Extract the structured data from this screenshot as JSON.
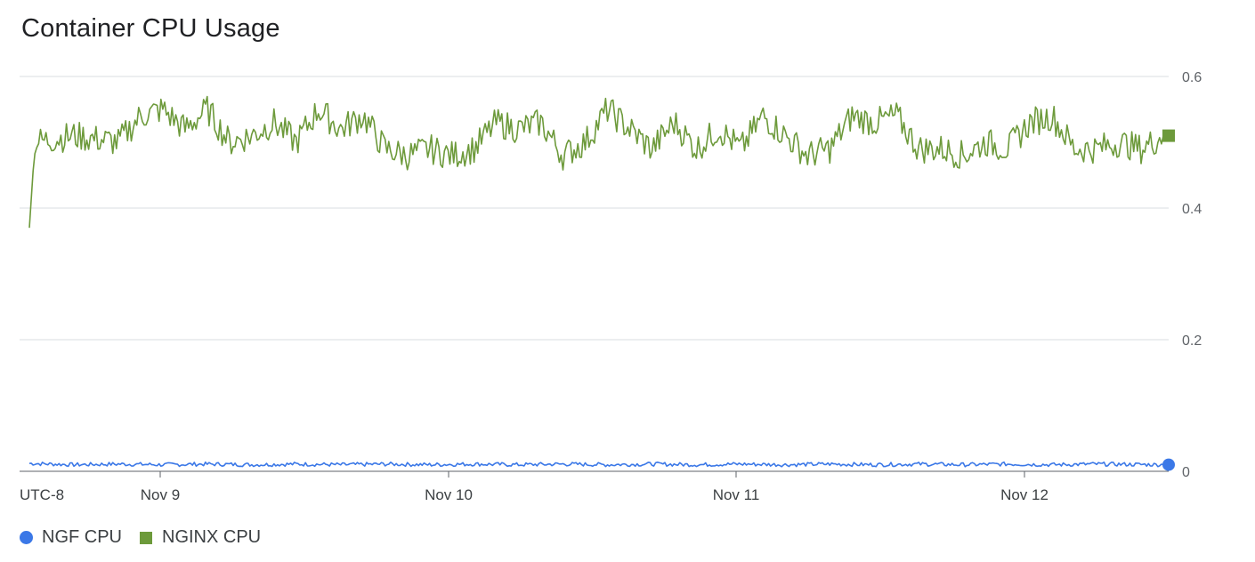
{
  "chart_data": {
    "type": "line",
    "title": "Container CPU Usage",
    "timezone_label": "UTC-8",
    "x_tick_labels": [
      "Nov 9",
      "Nov 10",
      "Nov 11",
      "Nov 12"
    ],
    "x_range": [
      "Nov 8 14:00",
      "Nov 12 20:00"
    ],
    "y_ticks": [
      "0",
      "0.2",
      "0.4",
      "0.6"
    ],
    "ylim": [
      0,
      0.6
    ],
    "grid": true,
    "legend_position": "bottom-left",
    "series": [
      {
        "name": "NGF CPU",
        "color": "#3b78e7",
        "marker": "circle",
        "approx_level": 0.01,
        "points": [
          [
            "Nov 8 14:00",
            0.012
          ],
          [
            "Nov 8 18:00",
            0.01
          ],
          [
            "Nov 8 22:00",
            0.011
          ],
          [
            "Nov 9 02:00",
            0.01
          ],
          [
            "Nov 9 06:00",
            0.011
          ],
          [
            "Nov 9 10:00",
            0.01
          ],
          [
            "Nov 9 14:00",
            0.011
          ],
          [
            "Nov 9 18:00",
            0.01
          ],
          [
            "Nov 9 22:00",
            0.011
          ],
          [
            "Nov 10 02:00",
            0.01
          ],
          [
            "Nov 10 06:00",
            0.011
          ],
          [
            "Nov 10 10:00",
            0.01
          ],
          [
            "Nov 10 14:00",
            0.011
          ],
          [
            "Nov 10 18:00",
            0.01
          ],
          [
            "Nov 10 22:00",
            0.011
          ],
          [
            "Nov 11 02:00",
            0.01
          ],
          [
            "Nov 11 06:00",
            0.011
          ],
          [
            "Nov 11 10:00",
            0.01
          ],
          [
            "Nov 11 14:00",
            0.011
          ],
          [
            "Nov 11 18:00",
            0.01
          ],
          [
            "Nov 11 22:00",
            0.011
          ],
          [
            "Nov 12 02:00",
            0.01
          ],
          [
            "Nov 12 06:00",
            0.011
          ],
          [
            "Nov 12 10:00",
            0.01
          ],
          [
            "Nov 12 14:00",
            0.011
          ],
          [
            "Nov 12 20:00",
            0.01
          ]
        ]
      },
      {
        "name": "NGINX CPU",
        "color": "#6d9a3b",
        "marker": "square",
        "points": [
          [
            "Nov 8 14:00",
            0.37
          ],
          [
            "Nov 8 14:30",
            0.5
          ],
          [
            "Nov 8 18:00",
            0.51
          ],
          [
            "Nov 8 22:00",
            0.5
          ],
          [
            "Nov 9 00:00",
            0.54
          ],
          [
            "Nov 9 02:00",
            0.55
          ],
          [
            "Nov 9 04:00",
            0.52
          ],
          [
            "Nov 9 06:00",
            0.55
          ],
          [
            "Nov 9 08:00",
            0.5
          ],
          [
            "Nov 9 10:00",
            0.51
          ],
          [
            "Nov 9 12:00",
            0.53
          ],
          [
            "Nov 9 14:00",
            0.5
          ],
          [
            "Nov 9 16:00",
            0.55
          ],
          [
            "Nov 9 18:00",
            0.52
          ],
          [
            "Nov 9 20:00",
            0.54
          ],
          [
            "Nov 9 22:00",
            0.49
          ],
          [
            "Nov 10 00:00",
            0.48
          ],
          [
            "Nov 10 02:00",
            0.49
          ],
          [
            "Nov 10 04:00",
            0.48
          ],
          [
            "Nov 10 06:00",
            0.49
          ],
          [
            "Nov 10 08:00",
            0.53
          ],
          [
            "Nov 10 10:00",
            0.52
          ],
          [
            "Nov 10 12:00",
            0.53
          ],
          [
            "Nov 10 14:00",
            0.48
          ],
          [
            "Nov 10 16:00",
            0.5
          ],
          [
            "Nov 10 18:00",
            0.55
          ],
          [
            "Nov 10 20:00",
            0.52
          ],
          [
            "Nov 10 22:00",
            0.49
          ],
          [
            "Nov 11 00:00",
            0.53
          ],
          [
            "Nov 11 02:00",
            0.49
          ],
          [
            "Nov 11 04:00",
            0.52
          ],
          [
            "Nov 11 06:00",
            0.49
          ],
          [
            "Nov 11 08:00",
            0.54
          ],
          [
            "Nov 11 10:00",
            0.51
          ],
          [
            "Nov 11 12:00",
            0.48
          ],
          [
            "Nov 11 14:00",
            0.49
          ],
          [
            "Nov 11 16:00",
            0.54
          ],
          [
            "Nov 11 18:00",
            0.53
          ],
          [
            "Nov 11 20:00",
            0.54
          ],
          [
            "Nov 11 22:00",
            0.49
          ],
          [
            "Nov 12 00:00",
            0.49
          ],
          [
            "Nov 12 02:00",
            0.48
          ],
          [
            "Nov 12 04:00",
            0.5
          ],
          [
            "Nov 12 06:00",
            0.49
          ],
          [
            "Nov 12 08:00",
            0.53
          ],
          [
            "Nov 12 10:00",
            0.54
          ],
          [
            "Nov 12 12:00",
            0.49
          ],
          [
            "Nov 12 14:00",
            0.49
          ],
          [
            "Nov 12 16:00",
            0.5
          ],
          [
            "Nov 12 18:00",
            0.49
          ],
          [
            "Nov 12 20:00",
            0.51
          ]
        ]
      }
    ]
  }
}
